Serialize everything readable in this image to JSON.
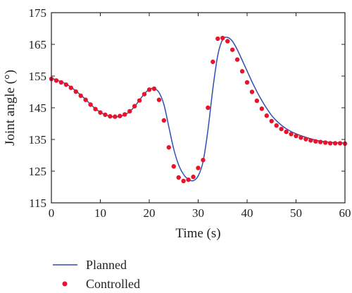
{
  "chart_data": {
    "type": "line",
    "xlabel": "Time (s)",
    "ylabel": "Joint angle (°)",
    "xlim": [
      0,
      60
    ],
    "ylim": [
      115,
      175
    ],
    "xticks": [
      0,
      10,
      20,
      30,
      40,
      50,
      60
    ],
    "yticks": [
      115,
      125,
      135,
      145,
      155,
      165,
      175
    ],
    "grid": false,
    "legend_position": "bottom-left, below plot",
    "colors": {
      "planned": "#2f4fb0",
      "controlled": "#e8142b",
      "axis": "#231f20"
    },
    "series": [
      {
        "name": "Planned",
        "style": "line",
        "x": [
          0,
          1,
          2,
          3,
          4,
          5,
          6,
          7,
          8,
          9,
          10,
          11,
          12,
          13,
          14,
          15,
          16,
          17,
          18,
          19,
          20,
          21,
          22,
          23,
          24,
          25,
          26,
          27,
          28,
          29,
          30,
          31,
          32,
          33,
          34,
          35,
          36,
          37,
          38,
          39,
          40,
          41,
          42,
          43,
          44,
          45,
          46,
          47,
          48,
          49,
          50,
          51,
          52,
          53,
          54,
          55,
          56,
          57,
          58,
          59,
          60
        ],
        "values": [
          154.3,
          153.8,
          153.2,
          152.5,
          151.5,
          150.3,
          149.0,
          147.6,
          146.1,
          144.7,
          143.6,
          142.8,
          142.3,
          142.1,
          142.3,
          142.8,
          143.8,
          145.4,
          147.4,
          149.4,
          150.8,
          151.1,
          149.8,
          146.0,
          139.0,
          132.0,
          127.0,
          124.0,
          122.4,
          122.0,
          123.5,
          128.0,
          138.0,
          151.0,
          161.5,
          166.5,
          167.2,
          166.0,
          163.3,
          160.0,
          156.6,
          153.2,
          150.1,
          147.3,
          144.8,
          142.6,
          140.9,
          139.5,
          138.4,
          137.5,
          136.8,
          136.2,
          135.7,
          135.2,
          134.8,
          134.5,
          134.3,
          134.1,
          134.0,
          133.9,
          133.9
        ]
      },
      {
        "name": "Controlled",
        "style": "markers",
        "x": [
          0,
          1,
          2,
          3,
          4,
          5,
          6,
          7,
          8,
          9,
          10,
          11,
          12,
          13,
          14,
          15,
          16,
          17,
          18,
          19,
          20,
          21,
          22,
          23,
          24,
          25,
          26,
          27,
          28,
          29,
          30,
          31,
          32,
          33,
          34,
          35,
          36,
          37,
          38,
          39,
          40,
          41,
          42,
          43,
          44,
          45,
          46,
          47,
          48,
          49,
          50,
          51,
          52,
          53,
          54,
          55,
          56,
          57,
          58,
          59,
          60
        ],
        "values": [
          154.1,
          153.6,
          153.0,
          152.3,
          151.3,
          150.1,
          148.8,
          147.5,
          146.0,
          144.6,
          143.5,
          142.8,
          142.3,
          142.2,
          142.4,
          142.9,
          143.9,
          145.5,
          147.3,
          149.3,
          150.7,
          151.0,
          147.5,
          141.0,
          132.5,
          126.5,
          123.0,
          121.9,
          122.3,
          123.2,
          126.0,
          128.5,
          145.0,
          159.5,
          166.8,
          167.0,
          166.0,
          163.3,
          160.2,
          156.5,
          153.0,
          150.0,
          147.2,
          144.7,
          142.5,
          140.8,
          139.4,
          138.3,
          137.4,
          136.7,
          136.1,
          135.6,
          135.1,
          134.7,
          134.4,
          134.2,
          134.0,
          133.8,
          133.8,
          133.8,
          133.7
        ]
      }
    ]
  }
}
